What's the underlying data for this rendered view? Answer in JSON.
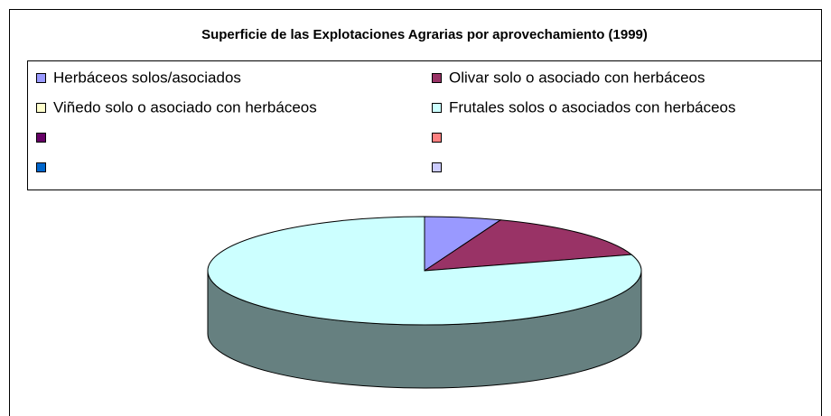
{
  "chart_data": {
    "type": "pie",
    "title": "Superficie de las Explotaciones Agrarias por aprovechamiento (1999)",
    "categories": [
      "Herbáceos solos/asociados",
      "Olivar solo o asociado con herbáceos",
      "Viñedo solo o asociado con herbáceos",
      "Frutales solos o asociados con herbáceos",
      null,
      null,
      null,
      null
    ],
    "values": [
      5.7,
      14.5,
      0,
      79.8,
      0,
      0,
      0,
      0
    ],
    "colors": [
      "#9999ff",
      "#993366",
      "#ffffcc",
      "#ccffff",
      "#660066",
      "#ff8080",
      "#0066cc",
      "#ccccff"
    ]
  }
}
